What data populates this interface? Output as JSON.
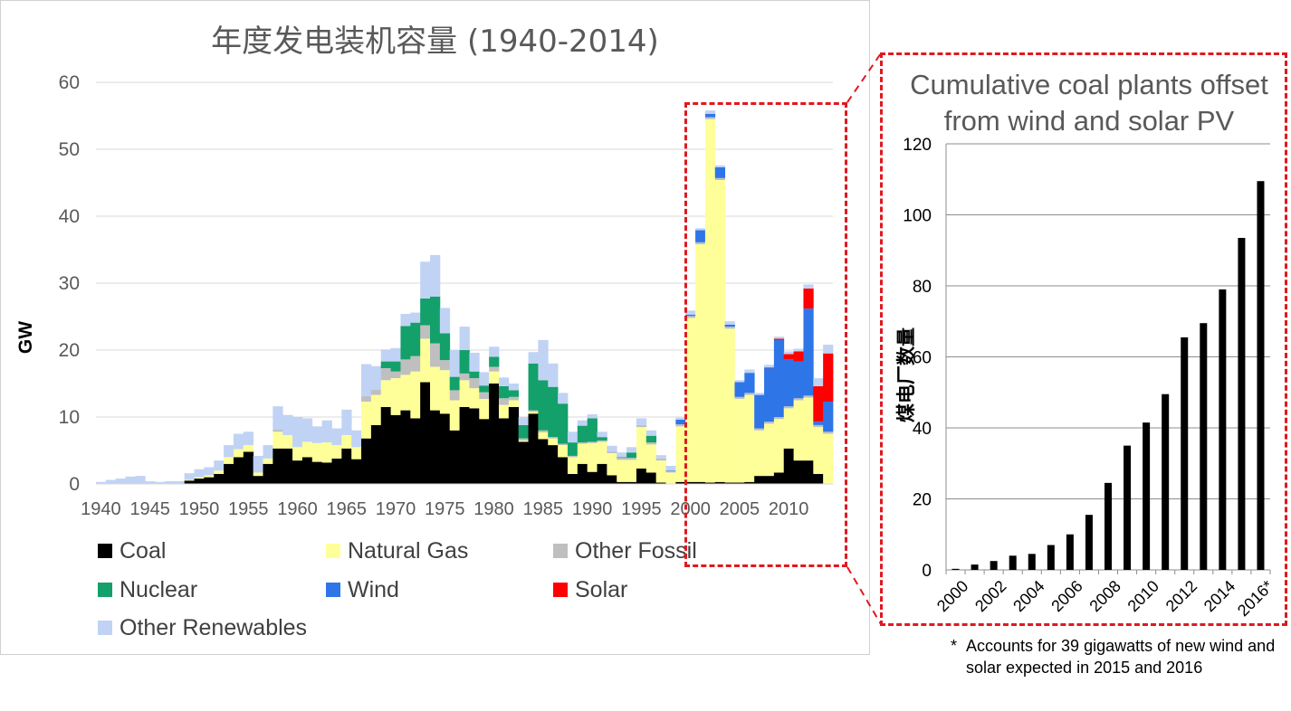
{
  "chart_data": [
    {
      "type": "bar",
      "stacked": true,
      "title": "年度发电装机容量 (1940-2014)",
      "ylabel": "GW",
      "ylim": [
        0,
        60
      ],
      "yticks": [
        0,
        10,
        20,
        30,
        40,
        50,
        60
      ],
      "x_tick_labels": [
        "1940",
        "1945",
        "1950",
        "1955",
        "1960",
        "1965",
        "1970",
        "1975",
        "1980",
        "1985",
        "1990",
        "1995",
        "2000",
        "2005",
        "2010"
      ],
      "x": [
        1940,
        1941,
        1942,
        1943,
        1944,
        1945,
        1946,
        1947,
        1948,
        1949,
        1950,
        1951,
        1952,
        1953,
        1954,
        1955,
        1956,
        1957,
        1958,
        1959,
        1960,
        1961,
        1962,
        1963,
        1964,
        1965,
        1966,
        1967,
        1968,
        1969,
        1970,
        1971,
        1972,
        1973,
        1974,
        1975,
        1976,
        1977,
        1978,
        1979,
        1980,
        1981,
        1982,
        1983,
        1984,
        1985,
        1986,
        1987,
        1988,
        1989,
        1990,
        1991,
        1992,
        1993,
        1994,
        1995,
        1996,
        1997,
        1998,
        1999,
        2000,
        2001,
        2002,
        2003,
        2004,
        2005,
        2006,
        2007,
        2008,
        2009,
        2010,
        2011,
        2012,
        2013,
        2014
      ],
      "grid": true,
      "legend": "bottom",
      "series": [
        {
          "name": "Coal",
          "color": "#000000",
          "values": [
            0,
            0,
            0,
            0,
            0,
            0,
            0,
            0,
            0,
            0.5,
            0.8,
            1.0,
            1.5,
            3.0,
            4.0,
            4.8,
            1.2,
            3.0,
            5.3,
            5.3,
            3.5,
            4.0,
            3.3,
            3.2,
            3.8,
            5.3,
            3.7,
            6.8,
            8.8,
            11.5,
            10.3,
            11.0,
            9.8,
            15.2,
            11.0,
            10.5,
            8.0,
            11.5,
            11.3,
            9.7,
            15.0,
            9.8,
            11.5,
            6.3,
            10.5,
            6.7,
            5.8,
            4.0,
            1.5,
            3.0,
            1.8,
            3.0,
            1.3,
            0.3,
            0.3,
            2.3,
            1.7,
            0.2,
            0,
            0.3,
            0.3,
            0.3,
            0.2,
            0.3,
            0.2,
            0.2,
            0.3,
            1.2,
            1.2,
            1.7,
            5.3,
            3.5,
            3.5,
            1.5,
            0
          ]
        },
        {
          "name": "Natural Gas",
          "color": "#ffff99",
          "values": [
            0,
            0,
            0,
            0,
            0,
            0,
            0,
            0,
            0,
            0.1,
            0.2,
            0.3,
            0.5,
            1.0,
            1.2,
            1.0,
            0.5,
            0.8,
            2.5,
            2.0,
            2.0,
            2.3,
            2.8,
            3.0,
            2.0,
            2.0,
            1.8,
            5.5,
            4.5,
            4.0,
            5.5,
            5.3,
            7.0,
            6.5,
            6.5,
            6.5,
            4.5,
            4.0,
            3.0,
            3.0,
            1.8,
            2.0,
            1.0,
            0.2,
            0.3,
            1.0,
            1.0,
            1.8,
            2.5,
            3.0,
            4.3,
            3.3,
            3.3,
            3.3,
            3.3,
            6.2,
            4.2,
            3.3,
            1.7,
            8.3,
            24.5,
            35.5,
            54.3,
            45.1,
            23.0,
            12.5,
            13.0,
            6.8,
            7.8,
            8.0,
            6.0,
            9.0,
            9.4,
            7.0,
            7.5
          ]
        },
        {
          "name": "Other Fossil",
          "color": "#bfbfbf",
          "values": [
            0,
            0,
            0,
            0,
            0,
            0,
            0,
            0,
            0,
            0,
            0,
            0,
            0,
            0,
            0,
            0,
            0,
            0,
            0.3,
            0,
            0,
            0,
            0,
            0,
            0,
            0,
            0,
            0.8,
            0.8,
            1.8,
            1.0,
            2.3,
            2.3,
            2.0,
            3.5,
            1.5,
            1.5,
            1.0,
            1.5,
            1.0,
            0.7,
            1.0,
            0.5,
            0.3,
            0.2,
            0.3,
            0.2,
            0.2,
            0.2,
            0.2,
            0.2,
            0.2,
            0.3,
            0.3,
            0.3,
            0.3,
            0.3,
            0.3,
            0.2,
            0.3,
            0.3,
            0.3,
            0.3,
            0.3,
            0.3,
            0.3,
            0.3,
            0.3,
            0.3,
            0.3,
            0.3,
            0.3,
            0.3,
            0.3,
            0.3
          ]
        },
        {
          "name": "Nuclear",
          "color": "#13a06b",
          "values": [
            0,
            0,
            0,
            0,
            0,
            0,
            0,
            0,
            0,
            0,
            0,
            0,
            0,
            0,
            0,
            0,
            0,
            0,
            0,
            0,
            0,
            0,
            0,
            0,
            0,
            0,
            0,
            0,
            0,
            1.0,
            1.5,
            5.0,
            5.0,
            4.0,
            7.0,
            4.0,
            2.0,
            3.5,
            1.0,
            1.0,
            1.5,
            1.8,
            1.0,
            2.0,
            7.0,
            7.5,
            7.5,
            6.0,
            2.0,
            2.5,
            3.5,
            0.5,
            0,
            0.1,
            0.8,
            0,
            1.0,
            0,
            0,
            0,
            0,
            0,
            0,
            0,
            0,
            0,
            0,
            0,
            0,
            0,
            0,
            0,
            0,
            0,
            0
          ]
        },
        {
          "name": "Wind",
          "color": "#2e75e8",
          "values": [
            0,
            0,
            0,
            0,
            0,
            0,
            0,
            0,
            0,
            0,
            0,
            0,
            0,
            0,
            0,
            0,
            0,
            0,
            0,
            0,
            0,
            0,
            0,
            0,
            0,
            0,
            0,
            0,
            0,
            0,
            0,
            0,
            0,
            0,
            0,
            0,
            0,
            0,
            0,
            0,
            0,
            0,
            0,
            0,
            0,
            0,
            0,
            0,
            0,
            0,
            0,
            0,
            0,
            0,
            0,
            0,
            0,
            0,
            0.1,
            0.7,
            0.2,
            1.8,
            0.5,
            1.6,
            0.3,
            2.2,
            3.0,
            5.0,
            8.0,
            11.5,
            7.0,
            5.5,
            13.0,
            0.5,
            4.5
          ]
        },
        {
          "name": "Solar",
          "color": "#ff0000",
          "values": [
            0,
            0,
            0,
            0,
            0,
            0,
            0,
            0,
            0,
            0,
            0,
            0,
            0,
            0,
            0,
            0,
            0,
            0,
            0,
            0,
            0,
            0,
            0,
            0,
            0,
            0,
            0,
            0,
            0,
            0,
            0,
            0,
            0,
            0,
            0,
            0,
            0,
            0,
            0,
            0,
            0,
            0,
            0,
            0,
            0,
            0,
            0,
            0,
            0,
            0,
            0,
            0,
            0,
            0,
            0,
            0,
            0,
            0,
            0,
            0,
            0,
            0,
            0,
            0,
            0,
            0,
            0,
            0,
            0.1,
            0.2,
            0.8,
            1.5,
            3.0,
            5.3,
            7.2
          ]
        },
        {
          "name": "Other Renewables",
          "color": "#c0d3f5",
          "values": [
            0.3,
            0.6,
            0.8,
            1.1,
            1.2,
            0.4,
            0.3,
            0.4,
            0.4,
            1.0,
            1.2,
            1.2,
            1.5,
            1.8,
            2.3,
            2.0,
            2.5,
            2.0,
            3.5,
            3.0,
            4.5,
            3.5,
            2.5,
            3.3,
            2.5,
            3.8,
            2.5,
            4.8,
            3.5,
            1.8,
            2.0,
            1.8,
            1.5,
            5.5,
            6.2,
            3.8,
            4.0,
            3.5,
            2.8,
            2.0,
            1.5,
            1.3,
            1.0,
            1.2,
            1.7,
            6.0,
            3.5,
            1.6,
            1.6,
            0.8,
            0.6,
            0.8,
            0.8,
            0.7,
            0.8,
            1.0,
            0.8,
            0.5,
            0.7,
            0.3,
            0.6,
            0.3,
            0.5,
            0.3,
            0.5,
            0.3,
            0.5,
            0.3,
            0.4,
            0.3,
            0.4,
            0.4,
            0.6,
            1.2,
            1.3
          ]
        }
      ]
    },
    {
      "type": "bar",
      "title": "Cumulative coal plants offset from wind and solar PV",
      "ylabel": "煤电厂数量",
      "ylim": [
        0,
        120
      ],
      "yticks": [
        0,
        20,
        40,
        60,
        80,
        100,
        120
      ],
      "grid": true,
      "categories": [
        "2000",
        "2001",
        "2002",
        "2003",
        "2004",
        "2005",
        "2006",
        "2007",
        "2008",
        "2009",
        "2010",
        "2011",
        "2012",
        "2013",
        "2014",
        "2015",
        "2016*"
      ],
      "x_tick_labels": [
        "2000",
        "2002",
        "2004",
        "2006",
        "2008",
        "2010",
        "2012",
        "2014",
        "2016*"
      ],
      "values": [
        0.3,
        1.5,
        2.5,
        4.0,
        4.5,
        7.0,
        10.0,
        15.5,
        24.5,
        35.0,
        41.5,
        49.5,
        65.5,
        69.5,
        79.0,
        93.5,
        109.5
      ],
      "color": "#000000"
    }
  ],
  "legend_items": [
    {
      "label": "Coal",
      "color": "#000000"
    },
    {
      "label": "Natural Gas",
      "color": "#ffff99"
    },
    {
      "label": "Other Fossil",
      "color": "#bfbfbf"
    },
    {
      "label": "Nuclear",
      "color": "#13a06b"
    },
    {
      "label": "Wind",
      "color": "#2e75e8"
    },
    {
      "label": "Solar",
      "color": "#ff0000"
    },
    {
      "label": "Other Renewables",
      "color": "#c0d3f5"
    }
  ],
  "footnote": {
    "marker": "*",
    "text": "Accounts for 39 gigawatts of new wind  and solar expected in 2015 and 2016"
  },
  "highlight_color": "#e0191f"
}
